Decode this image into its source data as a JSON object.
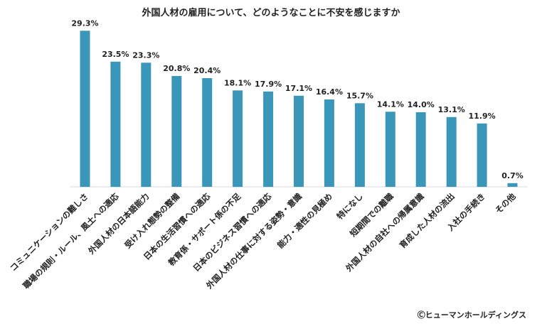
{
  "chart_data": {
    "type": "bar",
    "title": "外国人材の雇用について、どのようなことに不安を感じますか",
    "xlabel": "",
    "ylabel": "",
    "ylim": [
      0,
      30
    ],
    "grid": false,
    "legend": "none",
    "bar_color": "#3a97b9",
    "categories": [
      "コミュニケーションの難しさ",
      "職場の規則・ルール、風土への適応",
      "外国人材の日本語能力",
      "受け入れ態勢の整備",
      "日本の生活習慣への適応",
      "教育係・サポート係の不足",
      "日本のビジネス習慣への適応",
      "外国人材の仕事に対する姿勢・意識",
      "能力・適性の見極め",
      "特になし",
      "短期間での離職",
      "外国人材の自社への帰属意識",
      "育成した人材の流出",
      "入社の手続き",
      "その他"
    ],
    "values": [
      29.3,
      23.5,
      23.3,
      20.8,
      20.4,
      18.1,
      17.9,
      17.1,
      16.4,
      15.7,
      14.1,
      14.0,
      13.1,
      11.9,
      0.7
    ],
    "data_labels": [
      "29.3%",
      "23.5%",
      "23.3%",
      "20.8%",
      "20.4%",
      "18.1%",
      "17.9%",
      "17.1%",
      "16.4%",
      "15.7%",
      "14.1%",
      "14.0%",
      "13.1%",
      "11.9%",
      "0.7%"
    ]
  },
  "copyright": "Ⓒヒューマンホールディングス"
}
